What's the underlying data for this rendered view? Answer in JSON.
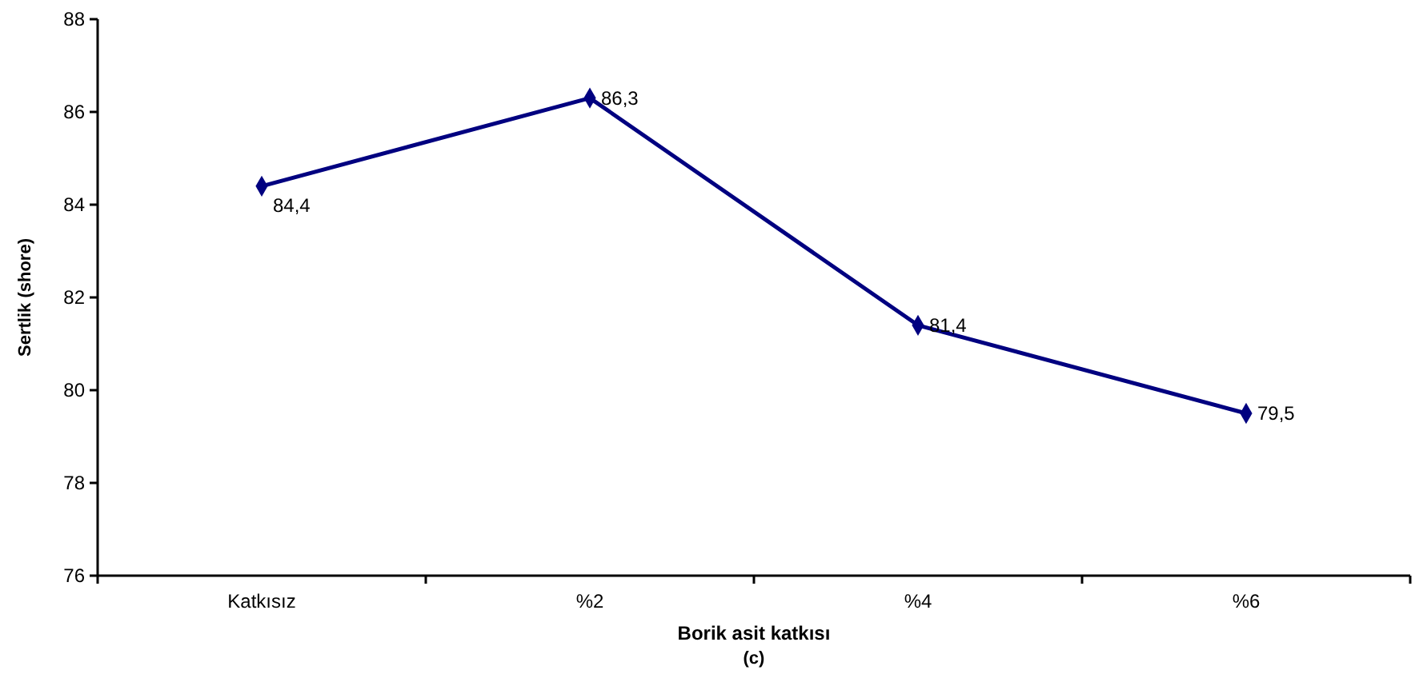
{
  "chart_data": {
    "type": "line",
    "xlabel": "Borik asit katkısı",
    "ylabel": "Sertlik (shore)",
    "annotations": [
      "(c)"
    ],
    "categories": [
      "Katkısız",
      "%2",
      "%4",
      "%6"
    ],
    "series": [
      {
        "color": "#000080",
        "values": [
          84.4,
          86.3,
          81.4,
          79.5
        ],
        "value_labels": [
          "84,4",
          "86,3",
          "81,4",
          "79,5"
        ]
      }
    ],
    "ylim": [
      76,
      88
    ],
    "yticks": [
      76,
      78,
      80,
      82,
      84,
      86,
      88
    ],
    "marker": "diamond",
    "line_style": "solid"
  }
}
